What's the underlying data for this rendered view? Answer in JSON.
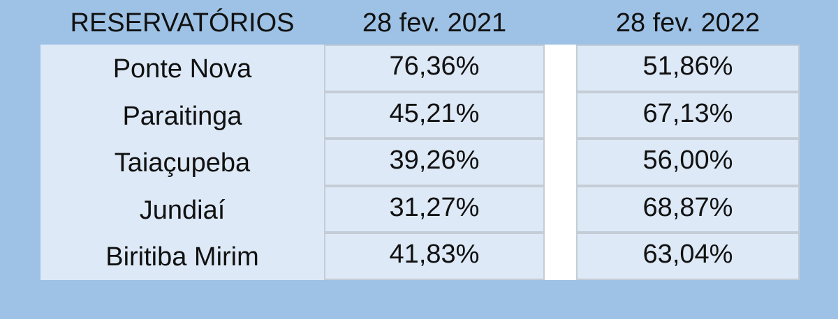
{
  "chart_data": {
    "type": "table",
    "columns": [
      "RESERVATÓRIOS",
      "28 fev. 2021",
      "28 fev. 2022"
    ],
    "rows": [
      {
        "name": "Ponte Nova",
        "v2021": "76,36%",
        "v2022": "51,86%"
      },
      {
        "name": "Paraitinga",
        "v2021": "45,21%",
        "v2022": "67,13%"
      },
      {
        "name": "Taiaçupeba",
        "v2021": "39,26%",
        "v2022": "56,00%"
      },
      {
        "name": "Jundiaí",
        "v2021": "31,27%",
        "v2022": "68,87%"
      },
      {
        "name": "Biritiba Mirim",
        "v2021": "41,83%",
        "v2022": "63,04%"
      }
    ]
  },
  "colors": {
    "background": "#9ec2e6",
    "cell_fill": "#dde9f6",
    "gap_fill": "#ffffff",
    "cell_border": "#c4cdd6"
  }
}
